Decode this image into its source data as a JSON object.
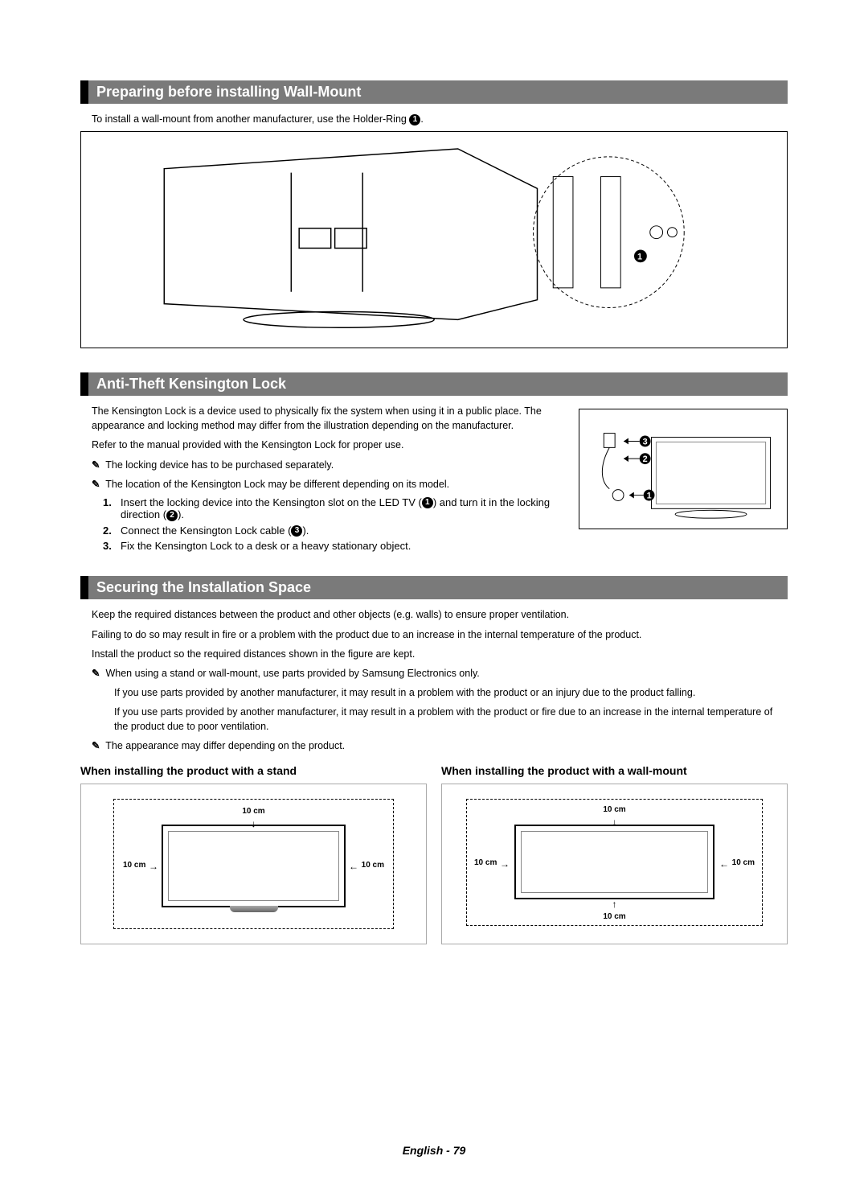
{
  "section1": {
    "title": "Preparing before installing Wall-Mount",
    "intro": "To install a wall-mount from another manufacturer, use the Holder-Ring",
    "intro_ref": "1",
    "figure_alt": "TV rear view – wall-mount holder ring diagram"
  },
  "section2": {
    "title": "Anti-Theft Kensington Lock",
    "p1": "The Kensington Lock is a device used to physically fix the system when using it in a public place. The appearance and locking method may differ from the illustration depending on the manufacturer.",
    "p2": "Refer to the manual provided with the Kensington Lock for proper use.",
    "notes": [
      "The locking device has to be purchased separately.",
      "The location of the Kensington Lock may be different depending on its model."
    ],
    "steps": [
      {
        "n": "1.",
        "t": "Insert the locking device into the Kensington slot on the LED TV (",
        "ref": "1",
        "t2": ") and turn it in the locking direction (",
        "ref2": "2",
        "t3": ")."
      },
      {
        "n": "2.",
        "t": "Connect the Kensington Lock cable (",
        "ref": "3",
        "t2": ").",
        "ref2": "",
        "t3": ""
      },
      {
        "n": "3.",
        "t": "Fix the Kensington Lock to a desk or a heavy stationary object.",
        "ref": "",
        "t2": "",
        "ref2": "",
        "t3": ""
      }
    ],
    "callouts": [
      "3",
      "2",
      "1"
    ]
  },
  "section3": {
    "title": "Securing the Installation Space",
    "p1": "Keep the required distances between the product and other objects (e.g. walls) to ensure proper ventilation.",
    "p2": "Failing to do so may result in fire or a problem with the product due to an increase in the internal temperature of the product.",
    "p3": "Install the product so the required distances shown in the figure are kept.",
    "note1": "When using a stand or wall-mount, use parts provided by Samsung Electronics only.",
    "note1a": "If you use parts provided by another manufacturer, it may result in a problem with the product or an injury due to the product falling.",
    "note1b": "If you use parts provided by another manufacturer, it  may result in a problem with the product or fire due to an increase in the internal temperature of the product due to poor ventilation.",
    "note2": "The appearance may differ depending on the product.",
    "col1_title": "When installing the product with a stand",
    "col2_title": "When installing the product with a wall-mount",
    "dist": "10 cm"
  },
  "footer": "English - 79",
  "note_glyph": "✓",
  "colors": {
    "header_bg": "#7a7a7a",
    "header_bar": "#000000",
    "text": "#000000"
  }
}
